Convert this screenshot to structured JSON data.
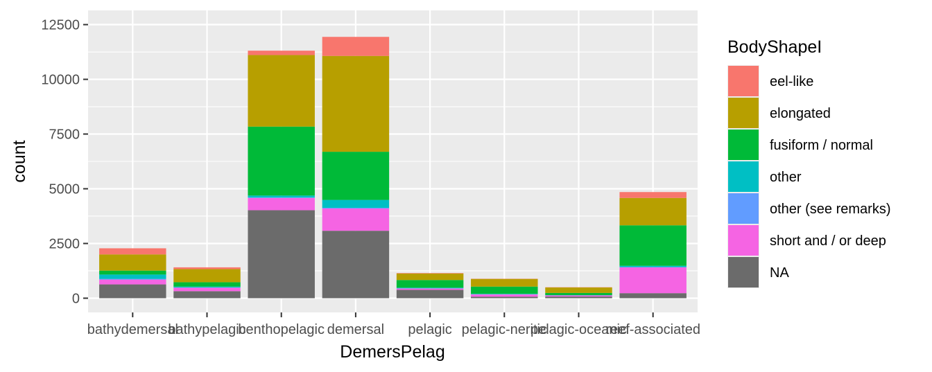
{
  "chart_data": {
    "type": "bar",
    "stacked": true,
    "xlabel": "DemersPelag",
    "ylabel": "count",
    "ylim": [
      0,
      12500
    ],
    "yticks": [
      0,
      2500,
      5000,
      7500,
      10000,
      12500
    ],
    "grid": true,
    "legend_position": "right",
    "legend_title": "BodyShapeI",
    "categories": [
      "bathydemersal",
      "bathypelagic",
      "benthopelagic",
      "demersal",
      "pelagic",
      "pelagic-neritic",
      "pelagic-oceanic",
      "reef-associated"
    ],
    "series": [
      {
        "name": "eel-like",
        "color": "#F8766D",
        "values": [
          280,
          80,
          200,
          870,
          20,
          10,
          10,
          270
        ]
      },
      {
        "name": "elongated",
        "color": "#B79F00",
        "values": [
          740,
          600,
          3270,
          4380,
          300,
          350,
          250,
          1250
        ]
      },
      {
        "name": "fusiform / normal",
        "color": "#00BA38",
        "values": [
          180,
          200,
          3150,
          2200,
          350,
          330,
          100,
          1850
        ]
      },
      {
        "name": "other",
        "color": "#00BFC4",
        "values": [
          200,
          40,
          90,
          360,
          30,
          20,
          10,
          60
        ]
      },
      {
        "name": "other (see remarks)",
        "color": "#619CFF",
        "values": [
          30,
          10,
          20,
          30,
          10,
          10,
          5,
          10
        ]
      },
      {
        "name": "short and / or deep",
        "color": "#F564E3",
        "values": [
          220,
          160,
          560,
          1020,
          60,
          100,
          50,
          1180
        ]
      },
      {
        "name": "NA",
        "color": "#6B6B6B",
        "values": [
          630,
          320,
          4020,
          3080,
          380,
          70,
          75,
          230
        ]
      }
    ]
  }
}
